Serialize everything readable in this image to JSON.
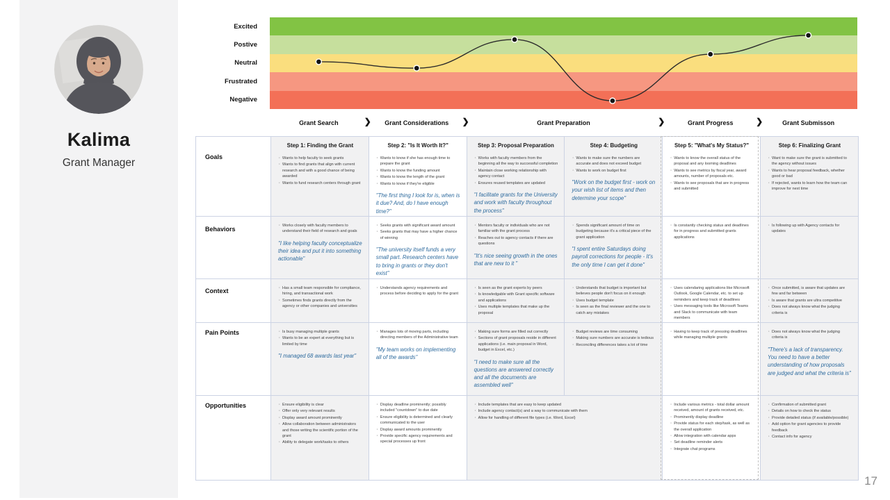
{
  "page": {
    "number": "17"
  },
  "persona": {
    "name": "Kalima",
    "role": "Grant Manager",
    "avatar": "portrait-woman-in-dark-gray-hijab"
  },
  "emotion_chart": {
    "type": "line",
    "bands": [
      {
        "label": "Excited",
        "color": "#82c344"
      },
      {
        "label": "Postive",
        "color": "#c6df9d"
      },
      {
        "label": "Neutral",
        "color": "#fade7e"
      },
      {
        "label": "Frustrated",
        "color": "#f69781"
      },
      {
        "label": "Negative",
        "color": "#f37057"
      }
    ],
    "scale_note": "level 0 = bottom of Negative band, 5 = top of Excited band",
    "points": [
      {
        "stage": "Grant Search",
        "step": "Step 1",
        "level": 2.58
      },
      {
        "stage": "Grant Considerations",
        "step": "Step 2",
        "level": 2.23
      },
      {
        "stage": "Grant Preparation",
        "step": "Step 3",
        "level": 3.79
      },
      {
        "stage": "Grant Preparation",
        "step": "Step 4",
        "level": 0.45
      },
      {
        "stage": "Grant Progress",
        "step": "Step 5",
        "level": 2.99
      },
      {
        "stage": "Grant Submisson",
        "step": "Step 6",
        "level": 4.02
      }
    ],
    "line_color": "#2b2b2b",
    "point_color": "#141414"
  },
  "stage_chevron": "❯",
  "stages": [
    {
      "label": "Grant Search",
      "span": 1
    },
    {
      "label": "Grant Considerations",
      "span": 1
    },
    {
      "label": "Grant Preparation",
      "span": 2
    },
    {
      "label": "Grant Progress",
      "span": 1
    },
    {
      "label": "Grant Submisson",
      "span": 1
    }
  ],
  "selection": {
    "outlined_column": "Step 5: \"What's My Status?\""
  },
  "table": {
    "row_labels": [
      "Goals",
      "Behaviors",
      "Context",
      "Pain Points",
      "Opportunities"
    ],
    "row_keys": [
      "goals",
      "behaviors",
      "context",
      "pain_points",
      "opportunities"
    ],
    "steps": [
      {
        "header": "Step 1: Finding the Grant",
        "goals": {
          "bullets": [
            "Wants to help faculty to seek grants",
            "Wants to find grants that align with current research and with a good chance of being awarded",
            "Wants to fund research centers through grant"
          ]
        },
        "behaviors": {
          "bullets": [
            "Works closely with faculty members to understand their field of research and goals"
          ],
          "quote": "\"I like helping faculty conceptualize their idea and put it into something actionable\""
        },
        "context": {
          "bullets": [
            "Has a small team responsible for compliance, hiring, and transactional work",
            "Sometimes finds grants directly from the agency or other companies and universities"
          ]
        },
        "pain_points": {
          "bullets": [
            "Is busy managing multiple grants",
            "Wants to be an expert at everything but is limited by time"
          ],
          "quote": "\"I managed 68 awards last year\""
        },
        "opportunities": {
          "bullets": [
            "Ensure eligibility is clear",
            "Offer only very relevant results",
            "Display award amount prominently",
            "Allow collaboration between administrators and those writing the scientific portion of the grant",
            "Ability to delegate work/tasks to others"
          ]
        }
      },
      {
        "header": "Step 2: \"Is It Worth It?\"",
        "goals": {
          "bullets": [
            "Wants to know if she has enough time to prepare the grant",
            "Wants to know the funding amount",
            "Wants to know the length of the grant",
            "Wants to know if they're eligible"
          ],
          "quote": "\"The first thing I look for is, when is it due? And, do I have enough time?\""
        },
        "behaviors": {
          "bullets": [
            "Seeks grants with significant award amount",
            "Seeks grants that may have a higher chance of winning"
          ],
          "quote": "\"The university itself funds a very small part. Research centers have to bring in grants or they don't exist\""
        },
        "context": {
          "bullets": [
            "Understands agency requirements and process before deciding to apply for the grant"
          ]
        },
        "pain_points": {
          "bullets": [
            "Manages lots of moving parts, including directing members of the Administrative team"
          ],
          "quote": "\"My team works on implementing all of the awards\""
        },
        "opportunities": {
          "bullets": [
            "Display deadline prominently; possibly included \"countdown\" to due date",
            "Ensure eligibility is determined and clearly communicated to the user",
            "Display award amounts prominently",
            "Provide specific agency requirements and special processes up front"
          ]
        }
      },
      {
        "header": "Step 3: Proposal Preparation",
        "goals": {
          "bullets": [
            "Works with faculty members from the beginning all the way to successful completion",
            "Maintain close working relationship with agency contact",
            "Ensures reused templates are updated"
          ],
          "quote": "\"I facilitate grants for the University and work with faculty throughout the process\""
        },
        "behaviors": {
          "bullets": [
            "Mentors faculty or individuals who are not familiar with the grant process",
            "Reaches out to agency contacts if there are questions"
          ],
          "quote": "\"It's nice seeing growth in the ones that are new to it \""
        },
        "context": {
          "bullets": [
            "Is seen as the grant experts by peers",
            "Is knowledgable with Grant specific software and applications",
            "Uses multiple templates that make up the proposal"
          ]
        },
        "pain_points": {
          "bullets": [
            "Making sure forms are filled out correctly",
            "Sections of grant proposals reside in different applications (i.e. main proposal in Word, budget in Excel, etc.)"
          ],
          "quote": "\"I need to make sure all the questions are answered correctly and all the documents are assembled well\""
        },
        "opportunities": {
          "bullets": [
            "Include templates that are easy to keep updated",
            "Include agency contact(s) and a way to communicate with them",
            "Allow for handling of different file types (i.e. Word, Excel)"
          ]
        }
      },
      {
        "header": "Step 4: Budgeting",
        "goals": {
          "bullets": [
            "Wants to make sure the numbers are accurate and does not exceed budget",
            "Wants to work on budget first"
          ],
          "quote": "\"Work on the budget first - work on your wish list of items and then determine your scope\""
        },
        "behaviors": {
          "bullets": [
            "Spends significant amount of time on budgeting because it's a critical piece of the grant application"
          ],
          "quote": "\"I spent entire Saturdays doing payroll corrections for people - It's the only time I can get it done\""
        },
        "context": {
          "bullets": [
            "Understands that budget is important but believes people don't focus on it enough",
            "Uses budget template",
            "Is seen as the final reviewer and the one to catch any mistakes"
          ]
        },
        "pain_points": {
          "bullets": [
            "Budget reviews are time consuming",
            "Making sure numbers are accurate is tedious",
            "Reconciling differences takes a lot of time"
          ]
        },
        "opportunities": null
      },
      {
        "header": "Step 5: \"What's My Status?\"",
        "goals": {
          "bullets": [
            "Wants to know the overall status of the proposal and any looming deadlines",
            "Wants to see metrics by fiscal year, award amounts, number of proposals etc.",
            "Wants to see proposals that are in progress and submitted"
          ]
        },
        "behaviors": {
          "bullets": [
            "Is constantly checking status and deadlines for in progress and submitted grants applications"
          ]
        },
        "context": {
          "bullets": [
            "Uses calendaring applications like Microsoft Outlook, Google Calendar, etc. to set up reminders and keep track of deadlines",
            "Uses messaging tools like Microsoft Teams and Slack to communicate with team members"
          ]
        },
        "pain_points": {
          "bullets": [
            "Having to keep track of pressing deadlines while managing multiple grants"
          ]
        },
        "opportunities": {
          "bullets": [
            "Include various metrics - total dollar amount received, amount of grants received, etc.",
            "Prominently display deadline",
            "Provide status for each step/task, as well as the overall application",
            "Allow integration with calendar apps",
            "Set deadline reminder alerts",
            "Integrate chat programs"
          ]
        }
      },
      {
        "header": "Step 6: Finalizing Grant",
        "goals": {
          "bullets": [
            "Want to make sure the grant is submitted to the agency without issues",
            "Wants to hear proposal feedback, whether good or bad",
            "If rejected, wants to learn how the team can improve for next time"
          ]
        },
        "behaviors": {
          "bullets": [
            "Is following up with Agency contacts for updates"
          ]
        },
        "context": {
          "bullets": [
            "Once submitted, is aware that updates are few and far between",
            "Is aware that grants are ultra competitive",
            "Does not always know what the judging criteria is"
          ]
        },
        "pain_points": {
          "bullets": [
            "Does not always know what the judging criteria is"
          ],
          "quote": "\"There's a lack of transparency. You need to have a better understanding of how proposals are judged and what the criteria is\""
        },
        "opportunities": {
          "bullets": [
            "Confirmation of submitted grant",
            "Details on how to check the status",
            "Provide detailed status (if available/possible)",
            "Add option for grant agencies to provide feedback",
            "Contact info for agency"
          ]
        }
      }
    ]
  }
}
